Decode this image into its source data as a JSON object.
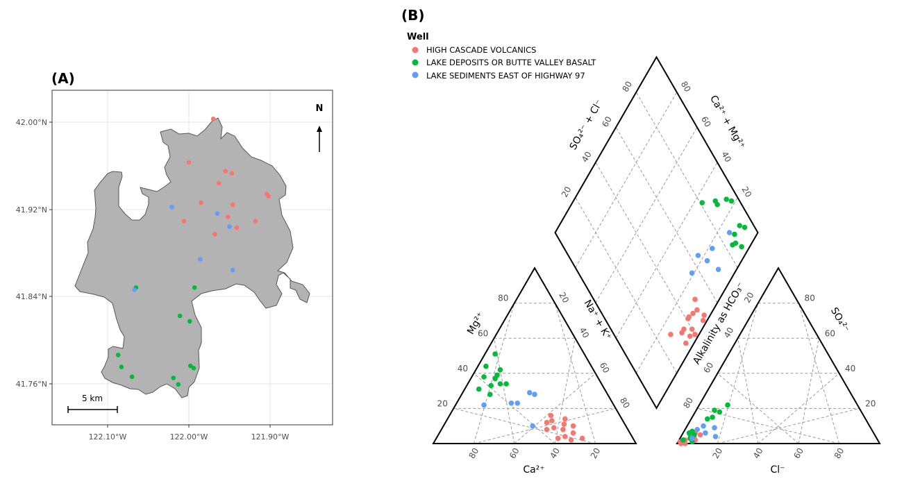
{
  "colors": {
    "high_cascade": "#F8766D",
    "lake_deposits": "#00BA38",
    "lake_sediments": "#619CFF",
    "basin_fill": "#b3b3b3",
    "basin_outline": "#555555"
  },
  "panel_a": {
    "label": "(A)",
    "north": "N",
    "scale_label": "5 km",
    "y_ticks": [
      "42.00°N",
      "41.92°N",
      "41.84°N",
      "41.76°N"
    ],
    "x_ticks": [
      "122.10°W",
      "122.00°W",
      "121.90°W"
    ]
  },
  "panel_b": {
    "label": "(B)",
    "legend_title": "Well",
    "legend": [
      {
        "name": "HIGH CASCADE VOLCANICS",
        "color": "#F8766D"
      },
      {
        "name": "LAKE DEPOSITS OR BUTTE VALLEY BASALT",
        "color": "#00BA38"
      },
      {
        "name": "LAKE SEDIMENTS EAST OF HIGHWAY 97",
        "color": "#619CFF"
      }
    ],
    "labels": {
      "ca": "Ca²⁺",
      "mg": "Mg²⁺",
      "nak": "Na⁺ + K⁺",
      "alk": "Alkalinity as HCO₃⁻",
      "so4": "SO₄²⁻",
      "cl": "Cl⁻",
      "diamond_left": "SO₄²⁻ + Cl⁻",
      "diamond_right": "Ca²⁺ + Mg²⁺"
    },
    "tick_values": [
      "20",
      "40",
      "60",
      "80"
    ]
  },
  "chart_data": [
    {
      "type": "scatter",
      "title": "(A)",
      "xlabel": "",
      "ylabel": "",
      "xlim": [
        -122.165,
        -121.835
      ],
      "ylim": [
        41.72,
        42.025
      ],
      "x_ticks": [
        "122.10°W",
        "122.00°W",
        "121.90°W"
      ],
      "y_ticks": [
        "42.00°N",
        "41.92°N",
        "41.84°N",
        "41.76°N"
      ],
      "grid": true,
      "series": [
        {
          "name": "HIGH CASCADE VOLCANICS",
          "color": "#F8766D",
          "points": [
            [
              -121.97,
              42.003
            ],
            [
              -122.0,
              41.963
            ],
            [
              -121.955,
              41.955
            ],
            [
              -121.947,
              41.953
            ],
            [
              -121.963,
              41.944
            ],
            [
              -121.904,
              41.934
            ],
            [
              -121.902,
              41.932
            ],
            [
              -121.985,
              41.926
            ],
            [
              -121.946,
              41.924
            ],
            [
              -121.952,
              41.913
            ],
            [
              -122.006,
              41.909
            ],
            [
              -121.918,
              41.909
            ],
            [
              -121.941,
              41.903
            ],
            [
              -121.968,
              41.897
            ]
          ]
        },
        {
          "name": "LAKE DEPOSITS OR BUTTE VALLEY BASALT",
          "color": "#00BA38",
          "points": [
            [
              -122.065,
              41.848
            ],
            [
              -121.993,
              41.848
            ],
            [
              -122.011,
              41.822
            ],
            [
              -121.999,
              41.817
            ],
            [
              -122.087,
              41.786
            ],
            [
              -122.083,
              41.775
            ],
            [
              -121.998,
              41.776
            ],
            [
              -121.994,
              41.774
            ],
            [
              -122.07,
              41.766
            ],
            [
              -122.019,
              41.765
            ],
            [
              -122.013,
              41.759
            ]
          ]
        },
        {
          "name": "LAKE SEDIMENTS EAST OF HIGHWAY 97",
          "color": "#619CFF",
          "points": [
            [
              -122.021,
              41.922
            ],
            [
              -121.965,
              41.916
            ],
            [
              -121.95,
              41.904
            ],
            [
              -121.986,
              41.874
            ],
            [
              -121.946,
              41.864
            ],
            [
              -122.067,
              41.846
            ]
          ]
        }
      ]
    },
    {
      "type": "scatter",
      "title": "(B)",
      "plot": "piper",
      "xlabel": "",
      "ylabel": "",
      "series": [
        {
          "name": "HIGH CASCADE VOLCANICS",
          "color": "#F8766D",
          "points": [
            {
              "ca": 28,
              "mg": 6,
              "cl": 6,
              "so4": 3
            },
            {
              "ca": 26,
              "mg": 10,
              "cl": 5,
              "so4": 4
            },
            {
              "ca": 32,
              "mg": 8,
              "cl": 3,
              "so4": 2
            },
            {
              "ca": 30,
              "mg": 11,
              "cl": 7,
              "so4": 3
            },
            {
              "ca": 36,
              "mg": 9,
              "cl": 4,
              "so4": 5
            },
            {
              "ca": 34,
              "mg": 16,
              "cl": 6,
              "so4": 6
            },
            {
              "ca": 38,
              "mg": 12,
              "cl": 2,
              "so4": 1
            },
            {
              "ca": 28,
              "mg": 14,
              "cl": 8,
              "so4": 2
            },
            {
              "ca": 40,
              "mg": 8,
              "cl": 5,
              "so4": 3
            },
            {
              "ca": 33,
              "mg": 4,
              "cl": 3,
              "so4": 1
            },
            {
              "ca": 25,
              "mg": 3,
              "cl": 9,
              "so4": 5
            },
            {
              "ca": 31,
              "mg": 2,
              "cl": 4,
              "so4": 0
            },
            {
              "ca": 37,
              "mg": 3,
              "cl": 2,
              "so4": 0
            },
            {
              "ca": 35,
              "mg": 13,
              "cl": 1,
              "so4": 1
            }
          ]
        },
        {
          "name": "LAKE DEPOSITS OR BUTTE VALLEY BASALT",
          "color": "#00BA38",
          "points": [
            {
              "ca": 52,
              "mg": 44,
              "cl": 8,
              "so4": 14
            },
            {
              "ca": 56,
              "mg": 38,
              "cl": 10,
              "so4": 15
            },
            {
              "ca": 51,
              "mg": 37,
              "cl": 9,
              "so4": 19
            },
            {
              "ca": 49,
              "mg": 39,
              "cl": 12,
              "so4": 18
            },
            {
              "ca": 55,
              "mg": 33,
              "cl": 4,
              "so4": 7
            },
            {
              "ca": 50,
              "mg": 34,
              "cl": 3,
              "so4": 6
            },
            {
              "ca": 62,
              "mg": 31,
              "cl": 6,
              "so4": 5
            },
            {
              "ca": 58,
              "mg": 28,
              "cl": 5,
              "so4": 3
            },
            {
              "ca": 46,
              "mg": 42,
              "cl": 2,
              "so4": 2
            },
            {
              "ca": 44,
              "mg": 51,
              "cl": 7,
              "so4": 1
            },
            {
              "ca": 47,
              "mg": 34,
              "cl": 14,
              "so4": 22
            }
          ]
        },
        {
          "name": "LAKE SEDIMENTS EAST OF HIGHWAY 97",
          "color": "#619CFF",
          "points": [
            {
              "ca": 64,
              "mg": 22,
              "cl": 6,
              "so4": 8
            },
            {
              "ca": 50,
              "mg": 23,
              "cl": 8,
              "so4": 10
            },
            {
              "ca": 47,
              "mg": 23,
              "cl": 6,
              "so4": 3
            },
            {
              "ca": 38,
              "mg": 29,
              "cl": 11,
              "so4": 6
            },
            {
              "ca": 36,
              "mg": 28,
              "cl": 14,
              "so4": 9
            },
            {
              "ca": 46,
              "mg": 10,
              "cl": 17,
              "so4": 4
            }
          ]
        }
      ]
    }
  ]
}
